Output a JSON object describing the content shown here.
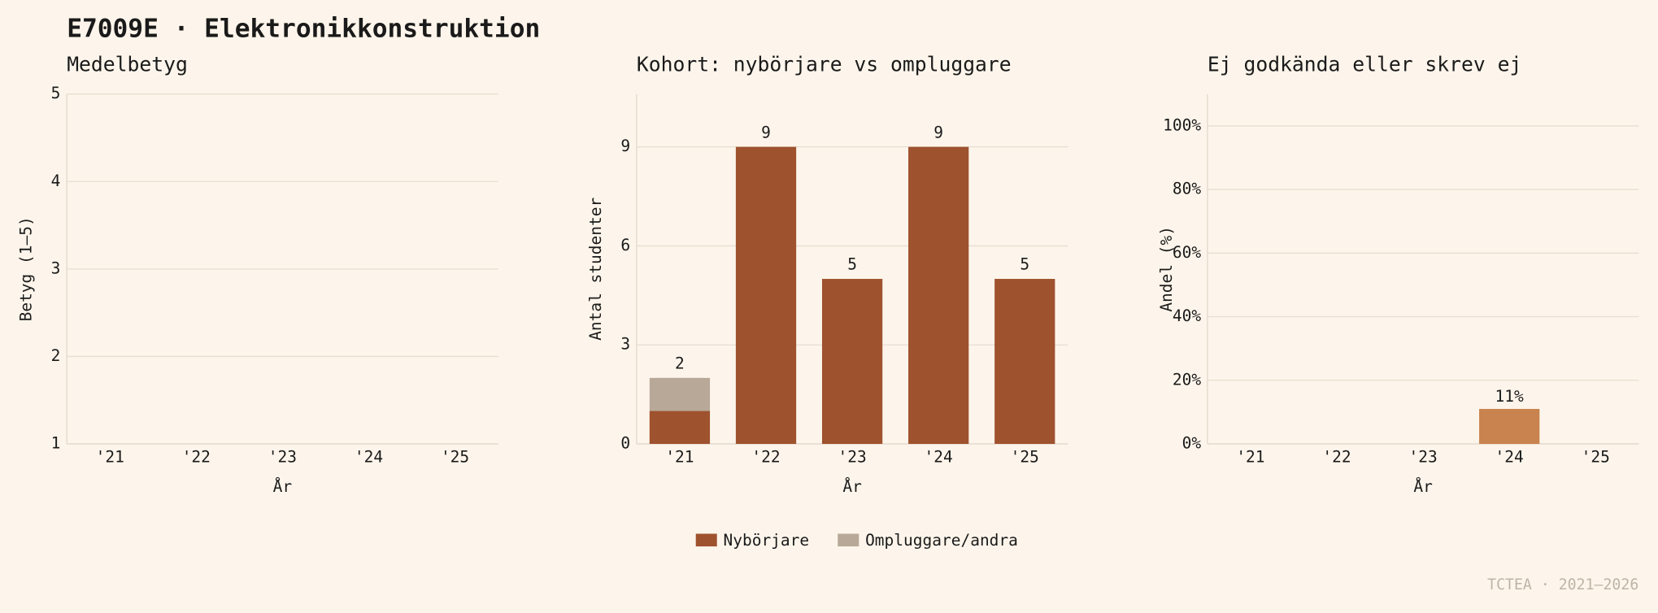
{
  "title": "E7009E · Elektronikkonstruktion",
  "footer": "TCTEA · 2021–2026",
  "chart_data": [
    {
      "type": "line",
      "title": "Medelbetyg",
      "y_label": "Betyg (1–5)",
      "x_label": "År",
      "categories": [
        "'21",
        "'22",
        "'23",
        "'24",
        "'25"
      ],
      "values": [
        null,
        null,
        null,
        null,
        null
      ],
      "ylim": [
        1,
        5
      ],
      "yticks": [
        1,
        2,
        3,
        4,
        5
      ],
      "grid": true
    },
    {
      "type": "stacked_bar",
      "title": "Kohort: nybörjare vs ompluggare",
      "y_label": "Antal studenter",
      "x_label": "År",
      "categories": [
        "'21",
        "'22",
        "'23",
        "'24",
        "'25"
      ],
      "series": [
        {
          "name": "Nybörjare",
          "color": "#9e522e",
          "values": [
            1,
            9,
            5,
            9,
            5
          ]
        },
        {
          "name": "Ompluggare/andra",
          "color": "#b7a898",
          "values": [
            1,
            0,
            0,
            0,
            0
          ]
        }
      ],
      "totals": [
        2,
        9,
        5,
        9,
        5
      ],
      "ylim": [
        0,
        10.6
      ],
      "yticks": [
        0,
        3,
        6,
        9
      ],
      "grid": true,
      "legend": "bottom"
    },
    {
      "type": "bar",
      "title": "Ej godkända eller skrev ej",
      "y_label": "Andel (%)",
      "x_label": "År",
      "categories": [
        "'21",
        "'22",
        "'23",
        "'24",
        "'25"
      ],
      "values": [
        null,
        null,
        null,
        11,
        null
      ],
      "value_labels": [
        null,
        null,
        null,
        "11%",
        null
      ],
      "color": "#c8834e",
      "ylim": [
        0,
        110
      ],
      "yticks": [
        {
          "value": 0,
          "label": "0%"
        },
        {
          "value": 20,
          "label": "20%"
        },
        {
          "value": 40,
          "label": "40%"
        },
        {
          "value": 60,
          "label": "60%"
        },
        {
          "value": 80,
          "label": "80%"
        },
        {
          "value": 100,
          "label": "100%"
        }
      ],
      "grid": true
    }
  ]
}
